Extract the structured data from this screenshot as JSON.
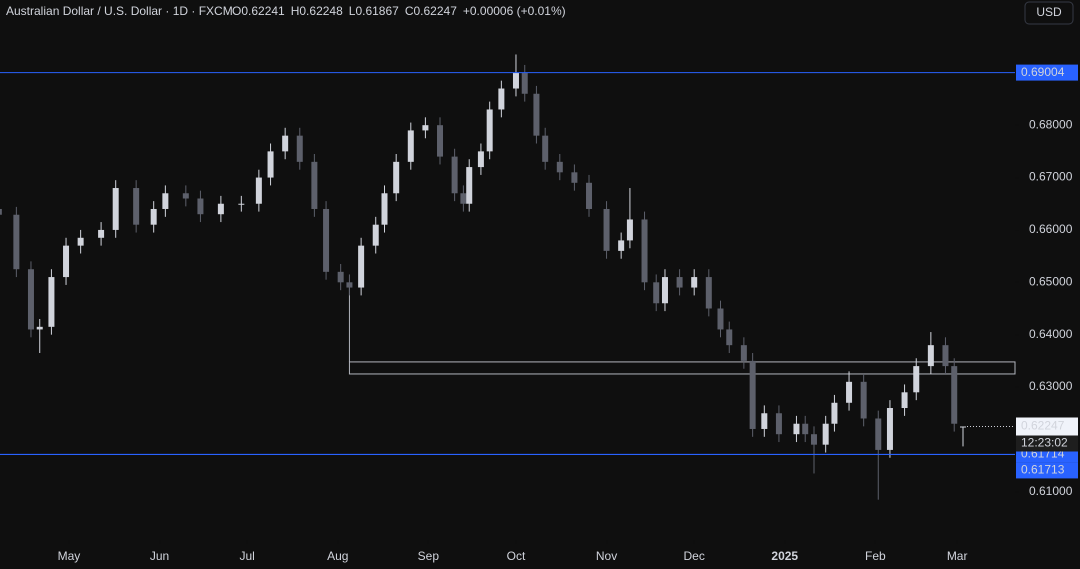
{
  "chart_data": {
    "type": "candlestick",
    "title": "Australian Dollar / U.S. Dollar · 1D · FXCM",
    "ohlc_header": [
      "O0.62241",
      "H0.62248",
      "L0.61867",
      "C0.62247",
      "+0.00006 (+0.01%)"
    ],
    "currency": "USD",
    "up_color": "#d1d4dc",
    "down_color": "#5d606b",
    "x": [
      6,
      12,
      17,
      20,
      24,
      29,
      34,
      41,
      46,
      53,
      59,
      63,
      70,
      75,
      82,
      89,
      95,
      99,
      104,
      109,
      114,
      118,
      123,
      126,
      130,
      135,
      138,
      142,
      147,
      152,
      157,
      162,
      165,
      167,
      171,
      174,
      178,
      183,
      186,
      190,
      193,
      198,
      203,
      208,
      214,
      219,
      222,
      227,
      231,
      234,
      239,
      244,
      249,
      253,
      256,
      261,
      264,
      268,
      273,
      279,
      282,
      285,
      289,
      292,
      297,
      302,
      307,
      311,
      316,
      320,
      325,
      330,
      333,
      336
    ],
    "open": [
      0.664,
      0.6629,
      0.6525,
      0.641,
      0.6415,
      0.651,
      0.657,
      0.6585,
      0.66,
      0.668,
      0.661,
      0.664,
      0.667,
      0.666,
      0.663,
      0.665,
      0.665,
      0.67,
      0.675,
      0.678,
      0.673,
      0.664,
      0.652,
      0.65,
      0.649,
      0.657,
      0.661,
      0.667,
      0.673,
      0.679,
      0.68,
      0.674,
      0.667,
      0.665,
      0.672,
      0.675,
      0.683,
      0.687,
      0.69,
      0.686,
      0.678,
      0.673,
      0.671,
      0.669,
      0.664,
      0.656,
      0.658,
      0.662,
      0.65,
      0.646,
      0.651,
      0.649,
      0.651,
      0.645,
      0.641,
      0.638,
      0.635,
      0.622,
      0.625,
      0.621,
      0.623,
      0.621,
      0.619,
      0.623,
      0.627,
      0.631,
      0.624,
      0.618,
      0.626,
      0.629,
      0.634,
      0.638,
      0.634,
      0.62241
    ],
    "high": [
      0.6655,
      0.6644,
      0.654,
      0.643,
      0.6525,
      0.6585,
      0.66,
      0.6615,
      0.6695,
      0.6695,
      0.6655,
      0.6685,
      0.6685,
      0.6675,
      0.6665,
      0.6665,
      0.6715,
      0.6765,
      0.6795,
      0.6795,
      0.6745,
      0.6655,
      0.6535,
      0.6515,
      0.6585,
      0.6625,
      0.6685,
      0.6745,
      0.6805,
      0.6815,
      0.6815,
      0.6755,
      0.6685,
      0.6735,
      0.6765,
      0.6845,
      0.6885,
      0.6935,
      0.6915,
      0.6875,
      0.6795,
      0.6745,
      0.6725,
      0.6705,
      0.6655,
      0.6595,
      0.668,
      0.6635,
      0.6515,
      0.6525,
      0.6525,
      0.6525,
      0.6525,
      0.6465,
      0.6425,
      0.6395,
      0.6365,
      0.6265,
      0.6265,
      0.6245,
      0.6245,
      0.6225,
      0.6245,
      0.6285,
      0.633,
      0.6325,
      0.6255,
      0.6275,
      0.6305,
      0.6355,
      0.6405,
      0.6395,
      0.6355,
      0.62248
    ],
    "low": [
      0.6614,
      0.651,
      0.6395,
      0.6365,
      0.64,
      0.6495,
      0.6555,
      0.657,
      0.6585,
      0.6595,
      0.6595,
      0.6625,
      0.6645,
      0.6615,
      0.6615,
      0.6635,
      0.6635,
      0.6685,
      0.6735,
      0.6715,
      0.6625,
      0.6505,
      0.6485,
      0.6475,
      0.6475,
      0.6555,
      0.6595,
      0.6655,
      0.6715,
      0.6775,
      0.6725,
      0.6655,
      0.6635,
      0.6635,
      0.6705,
      0.6735,
      0.6815,
      0.6855,
      0.6845,
      0.6765,
      0.6715,
      0.6695,
      0.6675,
      0.6625,
      0.6545,
      0.6545,
      0.6565,
      0.6485,
      0.6445,
      0.6445,
      0.6475,
      0.6475,
      0.6435,
      0.6395,
      0.6365,
      0.6335,
      0.6205,
      0.6205,
      0.6195,
      0.6195,
      0.6195,
      0.6135,
      0.6175,
      0.6215,
      0.6255,
      0.6225,
      0.6085,
      0.6165,
      0.6245,
      0.6275,
      0.6325,
      0.6325,
      0.6215,
      0.61867
    ],
    "close": [
      0.6629,
      0.6525,
      0.641,
      0.6415,
      0.651,
      0.657,
      0.6585,
      0.66,
      0.668,
      0.661,
      0.664,
      0.667,
      0.666,
      0.663,
      0.665,
      0.665,
      0.67,
      0.675,
      0.678,
      0.673,
      0.664,
      0.652,
      0.65,
      0.649,
      0.657,
      0.661,
      0.667,
      0.673,
      0.679,
      0.68,
      0.674,
      0.667,
      0.665,
      0.672,
      0.675,
      0.683,
      0.687,
      0.69,
      0.686,
      0.678,
      0.673,
      0.671,
      0.669,
      0.664,
      0.656,
      0.658,
      0.662,
      0.65,
      0.646,
      0.651,
      0.649,
      0.651,
      0.645,
      0.641,
      0.638,
      0.635,
      0.622,
      0.625,
      0.621,
      0.623,
      0.621,
      0.619,
      0.623,
      0.627,
      0.631,
      0.624,
      0.618,
      0.626,
      0.629,
      0.634,
      0.638,
      0.634,
      0.623,
      0.62247
    ],
    "xlim": [
      6.4,
      353.8
    ],
    "xticks": [
      {
        "value": 30,
        "label": "May"
      },
      {
        "value": 61,
        "label": "Jun"
      },
      {
        "value": 91,
        "label": "Jul"
      },
      {
        "value": 122,
        "label": "Aug"
      },
      {
        "value": 153,
        "label": "Sep"
      },
      {
        "value": 183,
        "label": "Oct"
      },
      {
        "value": 214,
        "label": "Nov"
      },
      {
        "value": 244,
        "label": "Dec"
      },
      {
        "value": 275,
        "label": "2025"
      },
      {
        "value": 306,
        "label": "Feb"
      },
      {
        "value": 334,
        "label": "Mar"
      }
    ],
    "ylim": [
      0.6008,
      0.7039
    ],
    "yticks": [
      {
        "value": 0.61,
        "label": "0.61000"
      },
      {
        "value": 0.62,
        "label": "0.62000"
      },
      {
        "value": 0.63,
        "label": "0.63000"
      },
      {
        "value": 0.64,
        "label": "0.64000"
      },
      {
        "value": 0.65,
        "label": "0.65000"
      },
      {
        "value": 0.66,
        "label": "0.66000"
      },
      {
        "value": 0.67,
        "label": "0.67000"
      },
      {
        "value": 0.68,
        "label": "0.68000"
      }
    ],
    "grid": false,
    "levels": [
      {
        "value": 0.69004,
        "label": "0.69004"
      },
      {
        "value": 0.61714,
        "label": "0.61714"
      },
      {
        "value": 0.61713,
        "label": "0.61713"
      }
    ],
    "level_color": "#2962ff",
    "zone": {
      "x": 126,
      "top": 0.6348,
      "bottom": 0.6325,
      "anchor": 0.649
    },
    "last": {
      "value": 0.62247,
      "label": "0.62247",
      "countdown": "12:23:02"
    }
  }
}
